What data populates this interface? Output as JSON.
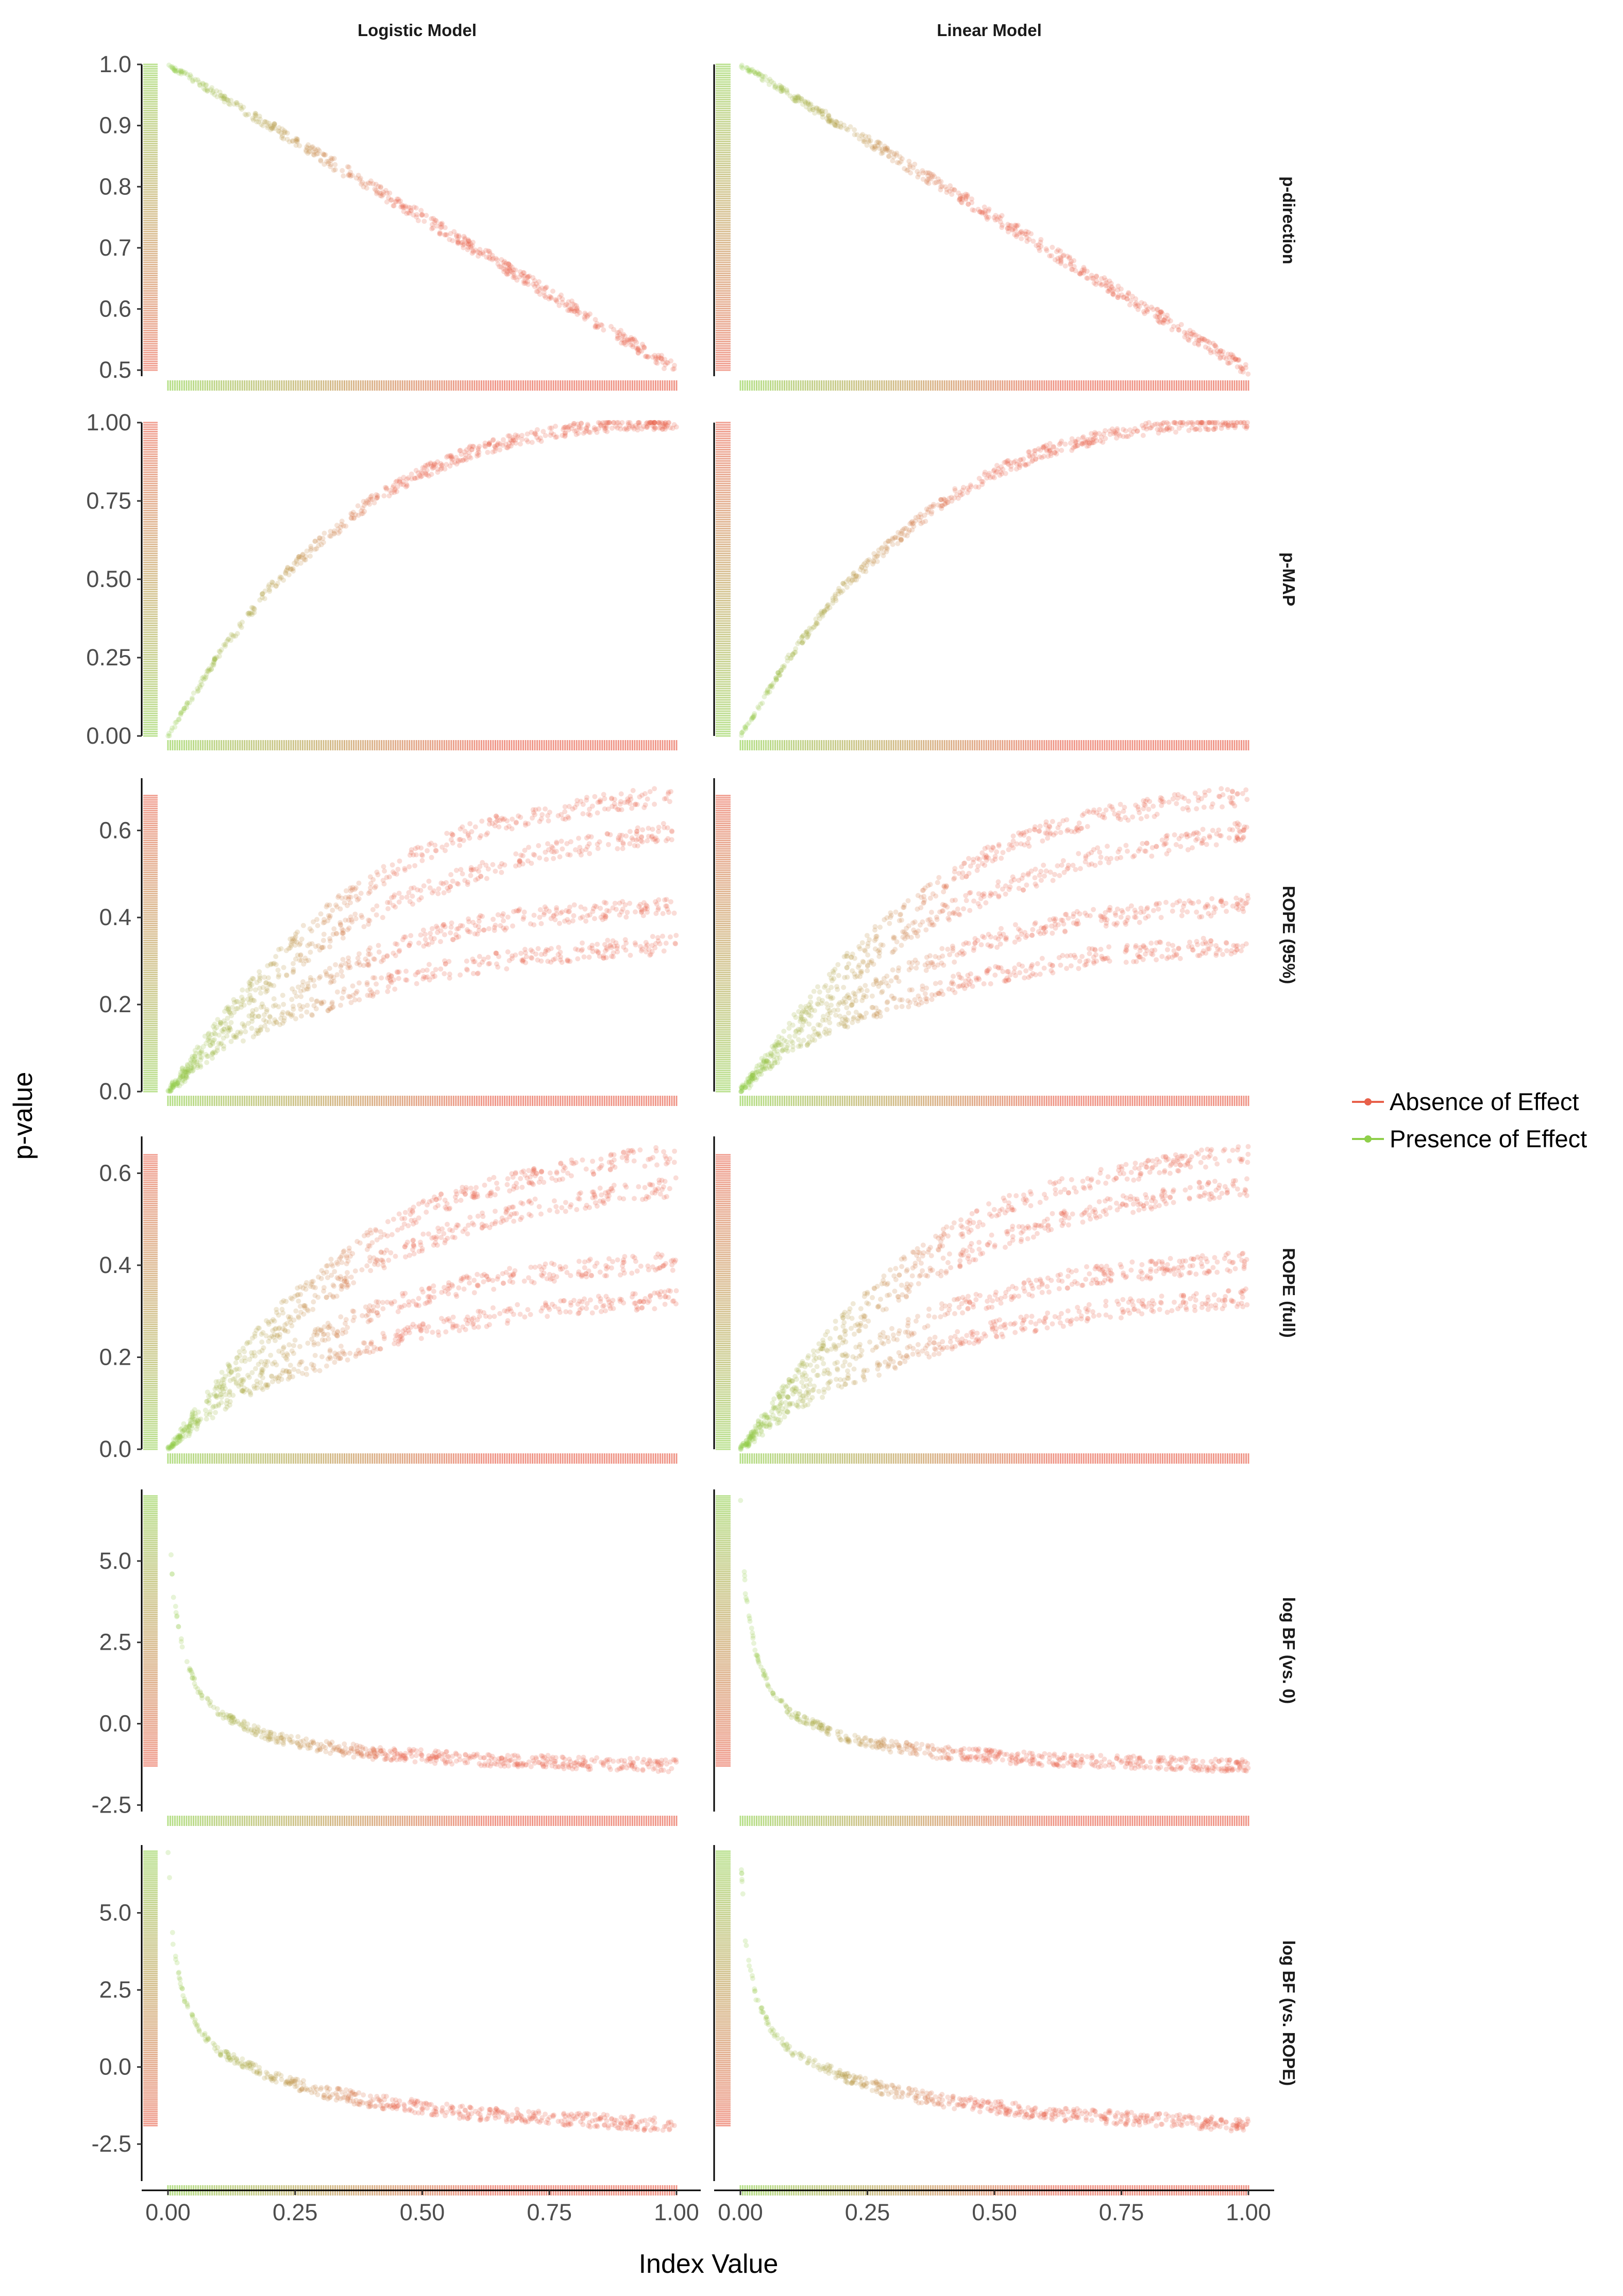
{
  "chart_data": {
    "type": "scatter",
    "title": "",
    "xlabel": "Index Value",
    "ylabel": "p-value",
    "colors": {
      "absence": "#e8604a",
      "presence": "#8fcf4a",
      "axis": "#000000",
      "tick": "#4d4d4d"
    },
    "legend": {
      "position": "right",
      "entries": [
        {
          "label": "Absence of Effect",
          "color": "#e8604a"
        },
        {
          "label": "Presence of Effect",
          "color": "#8fcf4a"
        }
      ]
    },
    "grid": false,
    "columns": [
      {
        "label": "Logistic Model",
        "xlim": [
          0,
          1
        ]
      },
      {
        "label": "Linear Model",
        "xlim": [
          0,
          1
        ]
      }
    ],
    "x_ticks": [
      {
        "value": 0,
        "label": "0.00"
      },
      {
        "value": 0.25,
        "label": "0.25"
      },
      {
        "value": 0.5,
        "label": "0.50"
      },
      {
        "value": 0.75,
        "label": "0.75"
      },
      {
        "value": 1,
        "label": "1.00"
      }
    ],
    "rows": [
      {
        "label": "p-direction",
        "ylim": [
          0.49,
          1.0
        ],
        "y_ticks": [
          {
            "value": 0.5,
            "label": "0.5"
          },
          {
            "value": 0.6,
            "label": "0.6"
          },
          {
            "value": 0.7,
            "label": "0.7"
          },
          {
            "value": 0.8,
            "label": "0.8"
          },
          {
            "value": 0.9,
            "label": "0.9"
          },
          {
            "value": 1.0,
            "label": "1.0"
          }
        ],
        "series": [
          {
            "x": [
              0.0,
              0.1,
              0.2,
              0.3,
              0.4,
              0.5,
              0.6,
              0.7,
              0.8,
              0.9,
              1.0
            ],
            "y": [
              1.0,
              0.95,
              0.9,
              0.85,
              0.8,
              0.75,
              0.7,
              0.65,
              0.6,
              0.55,
              0.5
            ]
          }
        ]
      },
      {
        "label": "p-MAP",
        "ylim": [
          0,
          1.0
        ],
        "y_ticks": [
          {
            "value": 0,
            "label": "0.00"
          },
          {
            "value": 0.25,
            "label": "0.25"
          },
          {
            "value": 0.5,
            "label": "0.50"
          },
          {
            "value": 0.75,
            "label": "0.75"
          },
          {
            "value": 1.0,
            "label": "1.00"
          }
        ],
        "series": [
          {
            "x": [
              0.0,
              0.1,
              0.2,
              0.3,
              0.4,
              0.5,
              0.6,
              0.7,
              0.8,
              0.9,
              1.0
            ],
            "y": [
              0.0,
              0.26,
              0.47,
              0.62,
              0.75,
              0.84,
              0.91,
              0.95,
              0.98,
              0.995,
              1.0
            ]
          }
        ]
      },
      {
        "label": "ROPE (95%)",
        "ylim": [
          0,
          0.72
        ],
        "y_ticks": [
          {
            "value": 0,
            "label": "0.0"
          },
          {
            "value": 0.2,
            "label": "0.2"
          },
          {
            "value": 0.4,
            "label": "0.4"
          },
          {
            "value": 0.6,
            "label": "0.6"
          }
        ],
        "series": [
          {
            "x": [
              0.0,
              0.1,
              0.2,
              0.3,
              0.4,
              0.5,
              0.6,
              0.7,
              0.8,
              0.9,
              1.0
            ],
            "y": [
              0.0,
              0.1,
              0.16,
              0.2,
              0.24,
              0.27,
              0.29,
              0.31,
              0.32,
              0.33,
              0.34
            ]
          },
          {
            "x": [
              0.0,
              0.1,
              0.2,
              0.3,
              0.4,
              0.5,
              0.6,
              0.7,
              0.8,
              0.9,
              1.0
            ],
            "y": [
              0.0,
              0.12,
              0.2,
              0.26,
              0.31,
              0.35,
              0.38,
              0.4,
              0.41,
              0.42,
              0.43
            ]
          },
          {
            "x": [
              0.0,
              0.1,
              0.2,
              0.3,
              0.4,
              0.5,
              0.6,
              0.7,
              0.8,
              0.9,
              1.0
            ],
            "y": [
              0.0,
              0.14,
              0.25,
              0.34,
              0.41,
              0.46,
              0.5,
              0.54,
              0.56,
              0.58,
              0.6
            ]
          },
          {
            "x": [
              0.0,
              0.1,
              0.2,
              0.3,
              0.4,
              0.5,
              0.6,
              0.7,
              0.8,
              0.9,
              1.0
            ],
            "y": [
              0.0,
              0.16,
              0.29,
              0.4,
              0.48,
              0.55,
              0.6,
              0.63,
              0.65,
              0.67,
              0.68
            ]
          }
        ]
      },
      {
        "label": "ROPE (full)",
        "ylim": [
          0,
          0.68
        ],
        "y_ticks": [
          {
            "value": 0,
            "label": "0.0"
          },
          {
            "value": 0.2,
            "label": "0.2"
          },
          {
            "value": 0.4,
            "label": "0.4"
          },
          {
            "value": 0.6,
            "label": "0.6"
          }
        ],
        "series": [
          {
            "x": [
              0.0,
              0.1,
              0.2,
              0.3,
              0.4,
              0.5,
              0.6,
              0.7,
              0.8,
              0.9,
              1.0
            ],
            "y": [
              0.0,
              0.09,
              0.15,
              0.19,
              0.23,
              0.26,
              0.28,
              0.3,
              0.31,
              0.32,
              0.33
            ]
          },
          {
            "x": [
              0.0,
              0.1,
              0.2,
              0.3,
              0.4,
              0.5,
              0.6,
              0.7,
              0.8,
              0.9,
              1.0
            ],
            "y": [
              0.0,
              0.11,
              0.19,
              0.25,
              0.3,
              0.33,
              0.36,
              0.38,
              0.39,
              0.4,
              0.41
            ]
          },
          {
            "x": [
              0.0,
              0.1,
              0.2,
              0.3,
              0.4,
              0.5,
              0.6,
              0.7,
              0.8,
              0.9,
              1.0
            ],
            "y": [
              0.0,
              0.13,
              0.24,
              0.33,
              0.4,
              0.45,
              0.49,
              0.52,
              0.54,
              0.56,
              0.57
            ]
          },
          {
            "x": [
              0.0,
              0.1,
              0.2,
              0.3,
              0.4,
              0.5,
              0.6,
              0.7,
              0.8,
              0.9,
              1.0
            ],
            "y": [
              0.0,
              0.15,
              0.28,
              0.38,
              0.46,
              0.52,
              0.56,
              0.59,
              0.61,
              0.63,
              0.64
            ]
          }
        ]
      },
      {
        "label": "log BF (vs. 0)",
        "ylim": [
          -2.7,
          7.2
        ],
        "y_ticks": [
          {
            "value": -2.5,
            "label": "-2.5"
          },
          {
            "value": 0,
            "label": "0.0"
          },
          {
            "value": 2.5,
            "label": "2.5"
          },
          {
            "value": 5.0,
            "label": "5.0"
          }
        ],
        "series": [
          {
            "x": [
              0.0,
              0.01,
              0.03,
              0.06,
              0.1,
              0.2,
              0.3,
              0.4,
              0.5,
              0.6,
              0.7,
              0.8,
              0.9,
              1.0
            ],
            "y": [
              7.0,
              4.0,
              2.2,
              1.0,
              0.3,
              -0.4,
              -0.7,
              -0.9,
              -1.0,
              -1.1,
              -1.15,
              -1.2,
              -1.25,
              -1.3
            ]
          }
        ]
      },
      {
        "label": "log BF (vs. ROPE)",
        "ylim": [
          -3.7,
          7.2
        ],
        "y_ticks": [
          {
            "value": -2.5,
            "label": "-2.5"
          },
          {
            "value": 0,
            "label": "0.0"
          },
          {
            "value": 2.5,
            "label": "2.5"
          },
          {
            "value": 5.0,
            "label": "5.0"
          }
        ],
        "series": [
          {
            "x": [
              0.0,
              0.01,
              0.03,
              0.06,
              0.1,
              0.2,
              0.3,
              0.4,
              0.5,
              0.6,
              0.7,
              0.8,
              0.9,
              1.0
            ],
            "y": [
              7.0,
              4.0,
              2.3,
              1.2,
              0.5,
              -0.3,
              -0.8,
              -1.1,
              -1.3,
              -1.5,
              -1.6,
              -1.7,
              -1.8,
              -1.9
            ]
          }
        ]
      }
    ]
  }
}
